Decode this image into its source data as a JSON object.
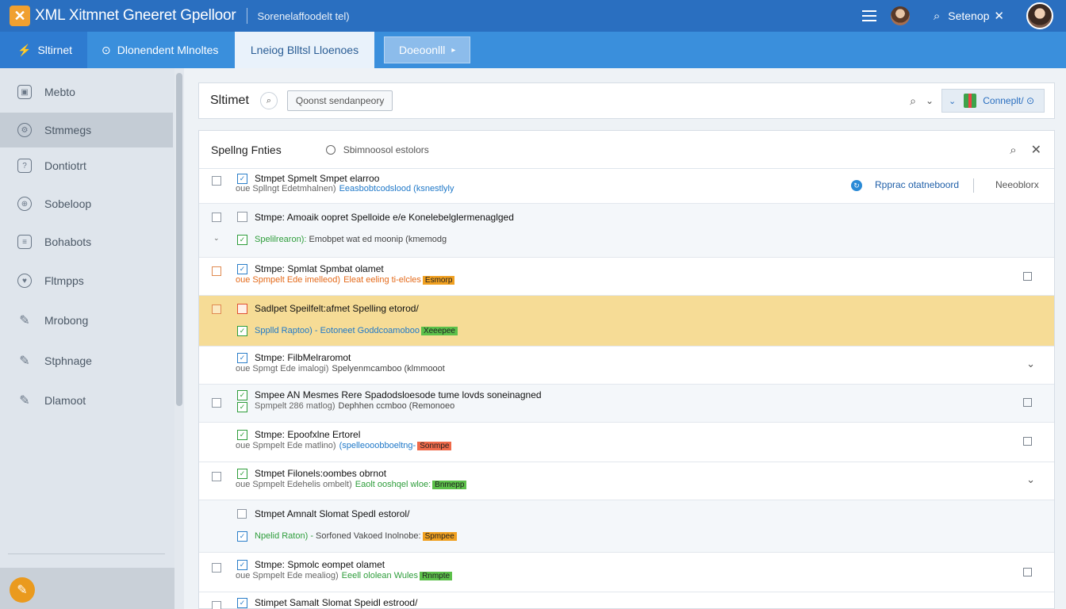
{
  "titlebar": {
    "logo_glyph": "✕",
    "app_title": "XML Xitmnet Gneeret Gpelloor",
    "subtitle": "Sorenelaffoodelt tel)",
    "search_label": "Setenop",
    "icons": [
      "menu-icon",
      "user-icon",
      "search-icon",
      "close-icon",
      "avatar"
    ]
  },
  "tabs": {
    "items": [
      {
        "label": "Sltirnet",
        "icon": "⚡"
      },
      {
        "label": "Dlonendent Mlnoltes",
        "icon": "⊙"
      },
      {
        "label": "Lneiog Blltsl Lloenoes"
      }
    ],
    "button_label": "Doeoonlll"
  },
  "sidebar": {
    "items": [
      {
        "label": "Mebto",
        "icon": "▣"
      },
      {
        "label": "Stmmegs",
        "icon": "⚙"
      },
      {
        "label": "Dontiotrt",
        "icon": "?"
      },
      {
        "label": "Sobeloop",
        "icon": "⊕"
      },
      {
        "label": "Bohabots",
        "icon": "≡"
      },
      {
        "label": "Fltmpps",
        "icon": "♥"
      },
      {
        "label": "Mrobong",
        "icon": "✎"
      },
      {
        "label": "Stphnage",
        "icon": "✎"
      },
      {
        "label": "Dlamoot",
        "icon": "✎"
      }
    ],
    "fab_icon": "✎"
  },
  "filterbar": {
    "title": "Sltimet",
    "input_placeholder": "Qoonst sendanpeory",
    "chip_label": "Conneplt/ ⊙"
  },
  "panel": {
    "title": "Spellng Fnties",
    "subtitle": "Sbimnoosol estolors",
    "rows": [
      {
        "line1": "Stmpet Spmelt Smpet elarroo",
        "pre": "oue Spllngt Edetmhalnen)",
        "hl": "Eeasbobtcodslood (ksnestlyly",
        "action": "Rpprac  otatneboord",
        "secondary": "Neeoblorx"
      },
      {
        "line1": "Stmpe: Amoaik oopret Spelloide e/e Konelebelglermenaglged",
        "pre": "Spelilrearon):",
        "rest": "Emobpet wat ed moonip  (kmemodg"
      },
      {
        "line1": "Stmpe: Spmlat Spmbat olamet",
        "pre": "oue Spmpelt Ede imelleod)",
        "hl": "Eleat eeling ti-elcles",
        "badge": "Esmorp"
      },
      {
        "line1": "Sadlpet Speilfelt:afmet Spelling etorod/",
        "pre": "Spplld Raptoo) -",
        "hl": "Eotoneet Goddcoamoboo",
        "badge": "Xeeepee"
      },
      {
        "line1": "Stmpe: FilbMelraromot",
        "pre": "oue Spmgt Ede imalogi)",
        "rest": "Spelyenmcamboo (klmmooot"
      },
      {
        "line1": "Smpee AN Mesmes Rere Spadodsloesode tume lovds soneinagned",
        "pre": "Spmpelt 286 matlog)",
        "rest": "Dephhen ccmboo (Remonoeo"
      },
      {
        "line1": "Stmpe: Epoofxlne Ertorel",
        "pre": "oue Spmpelt Ede matlino)",
        "hl": "(spelleooobboeltng-",
        "badge": "Sonmpe"
      },
      {
        "line1": "Stmpet Filonels:oombes obrnot",
        "pre": "oue Spmpelt Edehelis ombelt)",
        "hl": "Eaolt ooshqel wloe:",
        "badge": "Bnmepp"
      },
      {
        "line1": "Stmpet Amnalt Slomat Spedl estorol/",
        "pre": "Npelid Raton) -",
        "rest": "Sorfoned Vakoed Inolnobe:",
        "badge": "Spmpee"
      },
      {
        "line1": "Stmpe: Spmolc eompet olamet",
        "pre": "oue Spmpelt Ede mealiog)",
        "hl": "Eeell ololean Wules",
        "badge": "Rnmpte"
      },
      {
        "line1": "Stimpet Samalt Slomat Speidl estrood/"
      }
    ]
  },
  "colors": {
    "titlebar": "#2a6fc0",
    "tabsbar": "#3a8fdc",
    "highlight_row": "#f6dc96",
    "accent_orange": "#ea9a1e"
  }
}
